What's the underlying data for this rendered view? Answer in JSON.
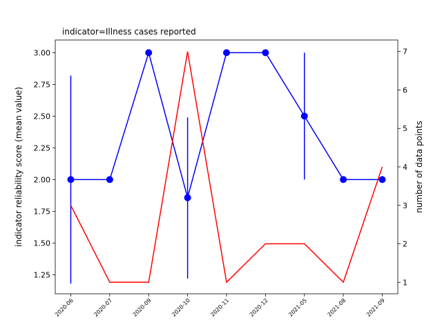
{
  "chart_data": {
    "type": "line",
    "title": "indicator=Illness cases reported",
    "categories": [
      "2020-06",
      "2020-07",
      "2020-09",
      "2020-10",
      "2020-11",
      "2020-12",
      "2021-05",
      "2021-08",
      "2021-09"
    ],
    "left_axis": {
      "label": "indicator reliability score (mean value)",
      "color": "#0000ff",
      "ylim": [
        1.1,
        3.1
      ],
      "ticks": [
        "1.25",
        "1.50",
        "1.75",
        "2.00",
        "2.25",
        "2.50",
        "2.75",
        "3.00"
      ]
    },
    "right_axis": {
      "label": "number of data points",
      "color": "#ff0000",
      "ylim": [
        0.7,
        7.3
      ],
      "ticks": [
        "1",
        "2",
        "3",
        "4",
        "5",
        "6",
        "7"
      ]
    },
    "series": [
      {
        "axis": "left",
        "color": "#0000ff",
        "markers": true,
        "values": [
          2.0,
          2.0,
          3.0,
          1.857,
          3.0,
          3.0,
          2.5,
          2.0,
          2.0
        ],
        "error_low": [
          1.18,
          null,
          null,
          1.22,
          null,
          null,
          2.0,
          null,
          null
        ],
        "error_high": [
          2.82,
          null,
          null,
          2.49,
          null,
          null,
          3.0,
          null,
          null
        ]
      },
      {
        "axis": "right",
        "color": "#ff0000",
        "markers": false,
        "values": [
          3,
          1,
          1,
          7,
          1,
          2,
          2,
          1,
          4
        ]
      }
    ]
  }
}
